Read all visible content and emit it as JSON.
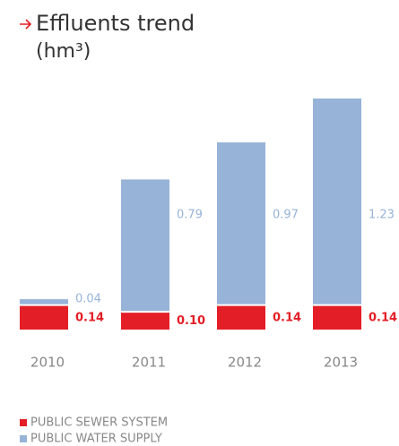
{
  "chart_data": {
    "type": "stacked_bar",
    "title": "Effluents trend",
    "subtitle": "(hm³)",
    "categories": [
      "2010",
      "2011",
      "2012",
      "2013"
    ],
    "series": [
      {
        "name": "PUBLIC SEWER SYSTEM",
        "color": "#e41e26",
        "values": [
          0.14,
          0.1,
          0.14,
          0.14
        ],
        "value_labels": [
          "0.14",
          "0.10",
          "0.14",
          "0.14"
        ]
      },
      {
        "name": "PUBLIC WATER SUPPLY",
        "color": "#97b3d8",
        "values": [
          0.04,
          0.79,
          0.97,
          1.23
        ],
        "value_labels": [
          "0.04",
          "0.79",
          "0.97",
          "1.23"
        ]
      }
    ]
  }
}
